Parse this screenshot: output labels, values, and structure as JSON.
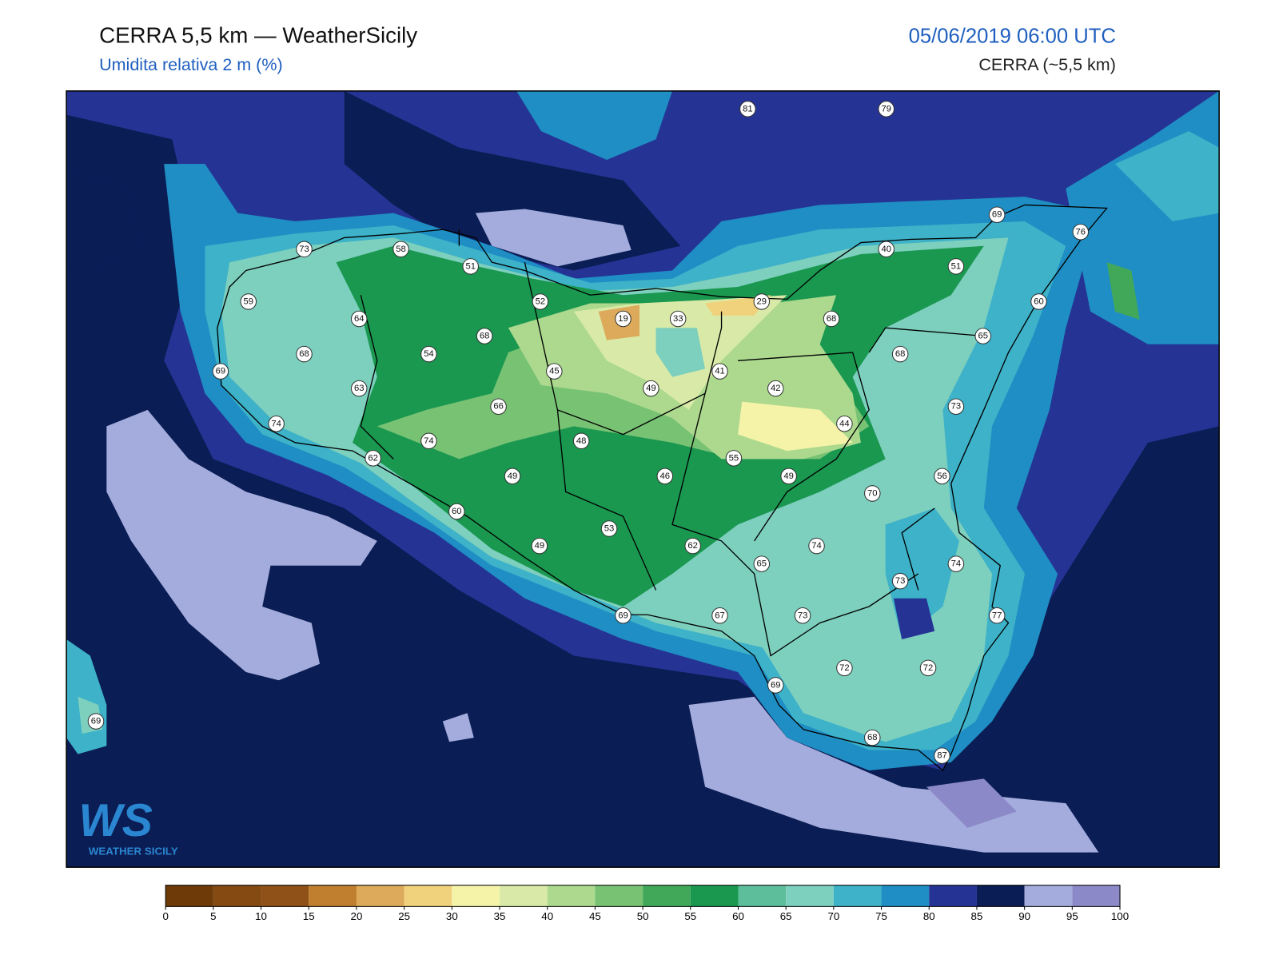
{
  "header": {
    "title": "CERRA 5,5 km — WeatherSicily",
    "subtitle": "Umidita relativa 2 m (%)",
    "date": "05/06/2019 06:00 UTC",
    "model": "CERRA (~5,5 km)"
  },
  "logo": {
    "mark": "WS",
    "text": "WEATHER SICILY"
  },
  "stations": {
    "values": [
      81,
      79,
      73,
      58,
      51,
      69,
      76,
      40,
      51,
      59,
      64,
      52,
      19,
      33,
      29,
      68,
      60,
      68,
      65,
      68,
      54,
      68,
      69,
      45,
      41,
      42,
      49,
      63,
      66,
      73,
      74,
      74,
      48,
      44,
      62,
      55,
      49,
      46,
      49,
      56,
      70,
      60,
      53,
      62,
      74,
      49,
      65,
      74,
      73,
      69,
      67,
      73,
      77,
      72,
      72,
      69,
      69,
      68,
      87
    ]
  },
  "colorbar": {
    "ticks": [
      0,
      5,
      10,
      15,
      20,
      25,
      30,
      35,
      40,
      45,
      50,
      55,
      60,
      65,
      70,
      75,
      80,
      85,
      90,
      95,
      100
    ],
    "colors": [
      "#6e3a08",
      "#854a12",
      "#8f5117",
      "#bf7f2f",
      "#dcaa5a",
      "#f0d27c",
      "#f5f3a8",
      "#d9eaa8",
      "#acd98e",
      "#78c274",
      "#41a85a",
      "#1a9850",
      "#5dbe9c",
      "#7dcfbe",
      "#3db2c8",
      "#1f8ec4",
      "#253494",
      "#0b1d55",
      "#a3acdc",
      "#8c89c8"
    ]
  }
}
